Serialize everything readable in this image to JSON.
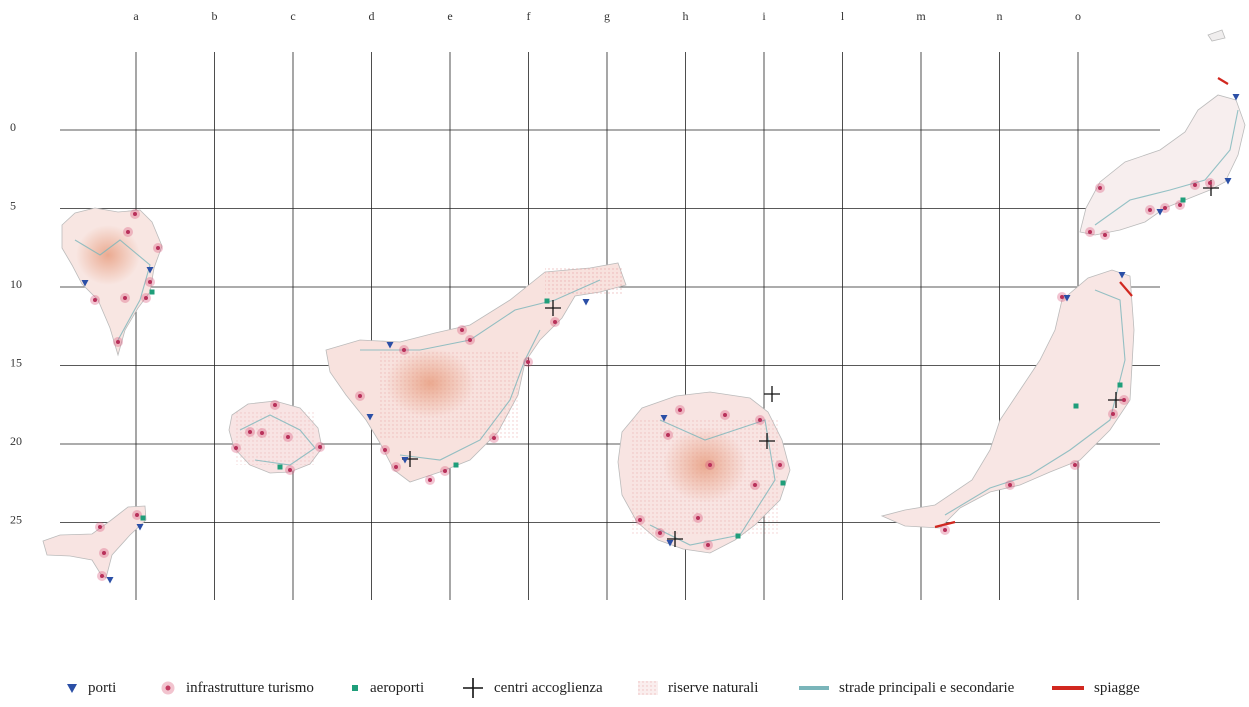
{
  "grid": {
    "columns": [
      "a",
      "b",
      "c",
      "d",
      "e",
      "f",
      "g",
      "h",
      "i",
      "l",
      "m",
      "n",
      "o"
    ],
    "rows": [
      "0",
      "5",
      "10",
      "15",
      "20",
      "25"
    ]
  },
  "legend": {
    "ports": "porti",
    "tourism": "infrastrutture turismo",
    "airports": "aeroporti",
    "reception": "centri accoglienza",
    "reserves": "riserve naturali",
    "roads": "strade principali e secondarie",
    "beaches": "spiagge"
  },
  "colors": {
    "port": "#2b4fa6",
    "tourism": "#d9577a",
    "airport": "#1f9e7a",
    "reception": "#111111",
    "reserve": "#e8a7a7",
    "road": "#6fb3b8",
    "beach": "#d1271f",
    "island_fill": "#f7e3e3"
  },
  "icons": [
    "triangle-down-icon",
    "ring-dot-icon",
    "square-icon",
    "cross-icon",
    "stipple-icon",
    "line-icon"
  ]
}
